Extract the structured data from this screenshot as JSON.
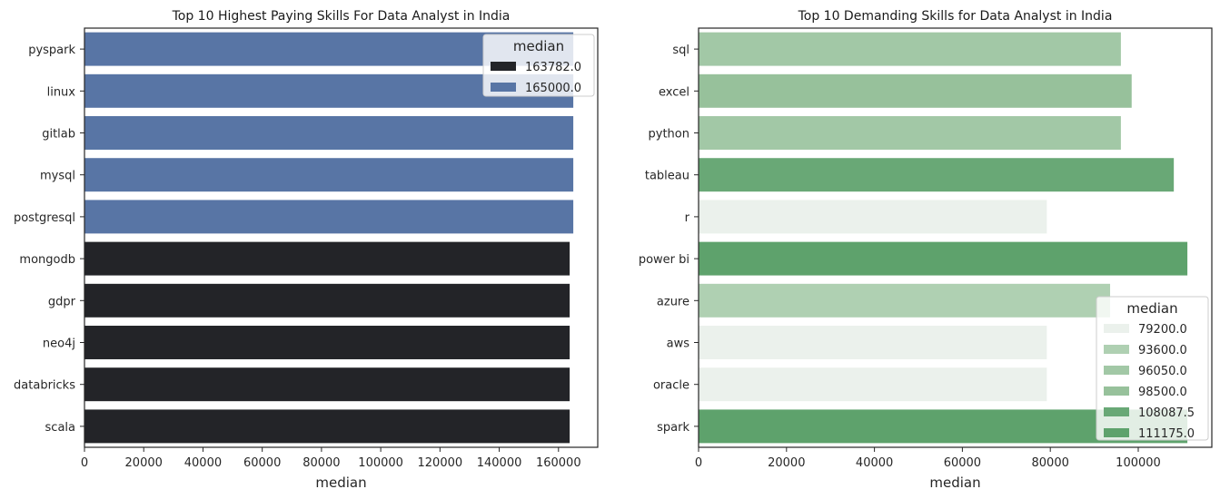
{
  "chart_data": [
    {
      "type": "bar",
      "orientation": "horizontal",
      "title": "Top 10 Highest Paying Skills For Data Analyst in India",
      "xlabel": "median",
      "ylabel": "",
      "xlim": [
        0,
        173250
      ],
      "xticks": [
        0,
        20000,
        40000,
        60000,
        80000,
        100000,
        120000,
        140000,
        160000
      ],
      "tick_labels": [
        "0",
        "20000",
        "40000",
        "60000",
        "80000",
        "100000",
        "120000",
        "140000",
        "160000"
      ],
      "categories": [
        "pyspark",
        "linux",
        "gitlab",
        "mysql",
        "postgresql",
        "mongodb",
        "gdpr",
        "neo4j",
        "databricks",
        "scala"
      ],
      "values": [
        165000,
        165000,
        165000,
        165000,
        165000,
        163782,
        163782,
        163782,
        163782,
        163782
      ],
      "legend": {
        "title": "median",
        "placement": "top-right",
        "entries": [
          {
            "label": "163782.0",
            "color": "#232428"
          },
          {
            "label": "165000.0",
            "color": "#5875a5"
          }
        ]
      }
    },
    {
      "type": "bar",
      "orientation": "horizontal",
      "title": "Top 10 Demanding Skills for Data Analyst in India",
      "xlabel": "median",
      "ylabel": "",
      "xlim": [
        0,
        116734
      ],
      "xticks": [
        0,
        20000,
        40000,
        60000,
        80000,
        100000
      ],
      "tick_labels": [
        "0",
        "20000",
        "40000",
        "60000",
        "80000",
        "100000"
      ],
      "categories": [
        "sql",
        "excel",
        "python",
        "tableau",
        "r",
        "power bi",
        "azure",
        "aws",
        "oracle",
        "spark"
      ],
      "values": [
        96050,
        98500,
        96050,
        108087.5,
        79200,
        111175,
        93600,
        79200,
        79200,
        111175
      ],
      "legend": {
        "title": "median",
        "placement": "lower-right",
        "entries": [
          {
            "label": "79200.0",
            "color": "#ebf1ec"
          },
          {
            "label": "93600.0",
            "color": "#afd0b2"
          },
          {
            "label": "96050.0",
            "color": "#a2c8a6"
          },
          {
            "label": "98500.0",
            "color": "#97c19b"
          },
          {
            "label": "108087.5",
            "color": "#69a876"
          },
          {
            "label": "111175.0",
            "color": "#5ea26c"
          }
        ]
      }
    }
  ]
}
